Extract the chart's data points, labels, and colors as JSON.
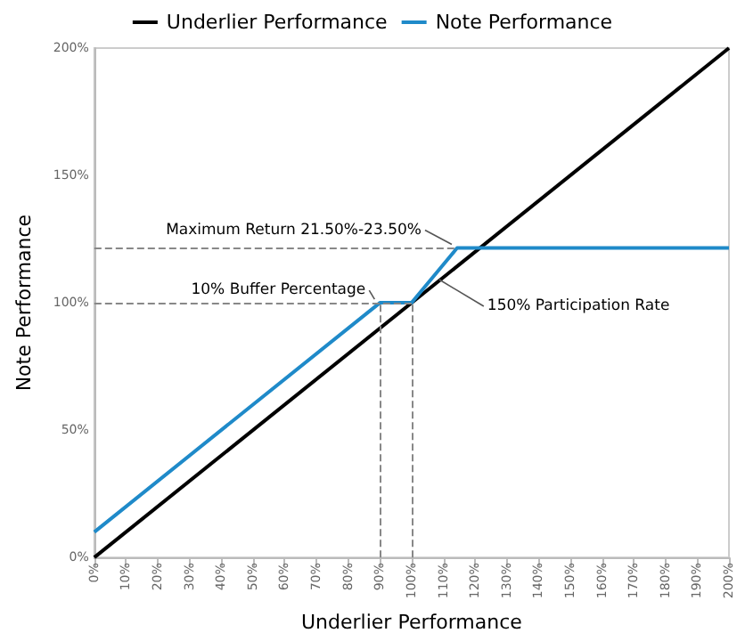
{
  "chart_data": {
    "type": "line",
    "xlabel": "Underlier Performance",
    "ylabel": "Note Performance",
    "legend": "top",
    "grid": false,
    "marker": "none",
    "series": [
      {
        "name": "Underlier Performance",
        "color": "#000000",
        "x": [
          0,
          200
        ],
        "values": [
          0,
          200
        ]
      },
      {
        "name": "Note Performance",
        "color": "#1f8ac9",
        "x": [
          0,
          90,
          100,
          114.33,
          200
        ],
        "values": [
          10,
          100,
          100,
          121.5,
          121.5
        ]
      }
    ],
    "xlim": [
      0,
      200
    ],
    "xticks": [
      {
        "value": 0,
        "label": "0%"
      },
      {
        "value": 10,
        "label": "10%"
      },
      {
        "value": 20,
        "label": "20%"
      },
      {
        "value": 30,
        "label": "30%"
      },
      {
        "value": 40,
        "label": "40%"
      },
      {
        "value": 50,
        "label": "50%"
      },
      {
        "value": 60,
        "label": "60%"
      },
      {
        "value": 70,
        "label": "70%"
      },
      {
        "value": 80,
        "label": "80%"
      },
      {
        "value": 90,
        "label": "90%"
      },
      {
        "value": 100,
        "label": "100%"
      },
      {
        "value": 110,
        "label": "110%"
      },
      {
        "value": 120,
        "label": "120%"
      },
      {
        "value": 130,
        "label": "130%"
      },
      {
        "value": 140,
        "label": "140%"
      },
      {
        "value": 150,
        "label": "150%"
      },
      {
        "value": 160,
        "label": "160%"
      },
      {
        "value": 170,
        "label": "170%"
      },
      {
        "value": 180,
        "label": "180%"
      },
      {
        "value": 190,
        "label": "190%"
      },
      {
        "value": 200,
        "label": "200%"
      }
    ],
    "ylim": [
      0,
      200
    ],
    "yticks": [
      {
        "value": 0,
        "label": "0%"
      },
      {
        "value": 50,
        "label": "50%"
      },
      {
        "value": 100,
        "label": "100%"
      },
      {
        "value": 150,
        "label": "150%"
      },
      {
        "value": 200,
        "label": "200%"
      }
    ],
    "ref_lines": [
      {
        "axis": "y",
        "value": 121.5,
        "color": "#888888",
        "line_style": "dashed"
      },
      {
        "axis": "y",
        "value": 100,
        "color": "#888888",
        "line_style": "dashed"
      },
      {
        "axis": "x",
        "value": 90,
        "color": "#888888",
        "line_style": "dashed"
      },
      {
        "axis": "x",
        "value": 100,
        "color": "#888888",
        "line_style": "dashed"
      }
    ],
    "annotations": [
      {
        "text": "Maximum Return 21.50%-23.50%",
        "x": 114.33,
        "y": 121.5
      },
      {
        "text": "10% Buffer Percentage",
        "x": 90,
        "y": 100
      },
      {
        "text": "150% Participation Rate",
        "x": 107,
        "y": 110.5
      }
    ]
  }
}
